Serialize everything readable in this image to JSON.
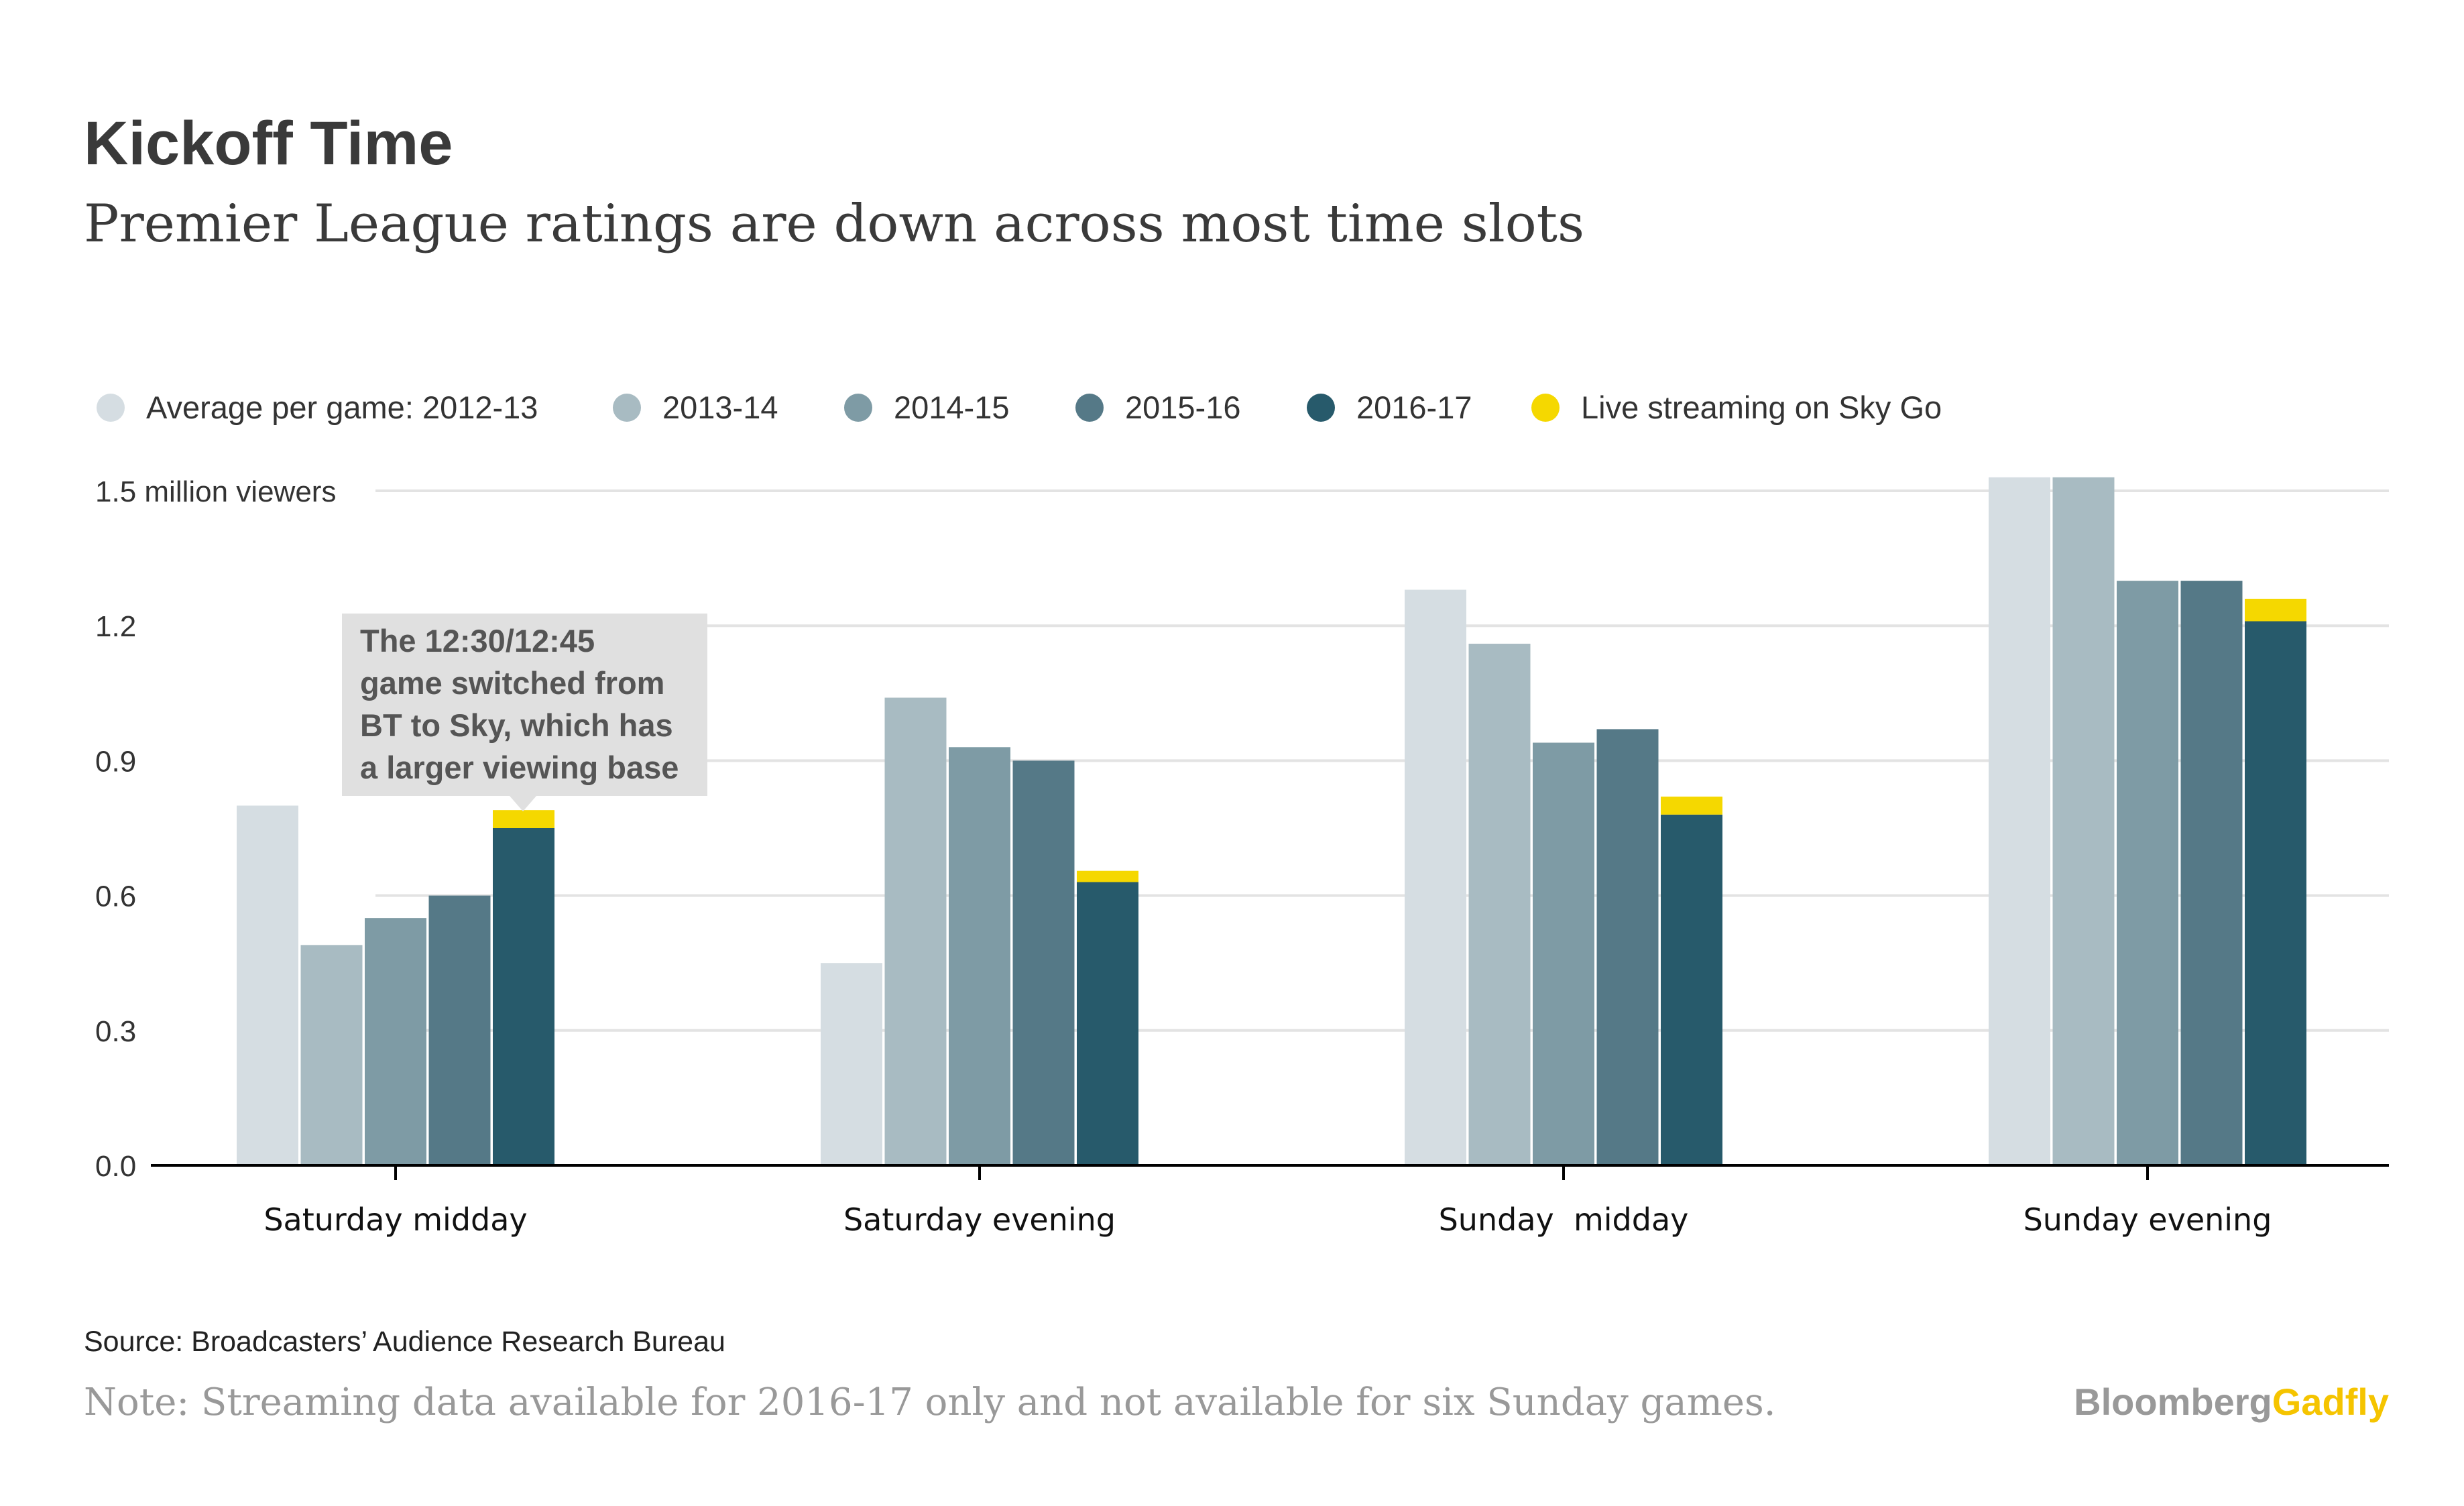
{
  "header": {
    "title": "Kickoff Time",
    "subtitle": "Premier League ratings are down across most time slots"
  },
  "legend": {
    "items": [
      {
        "label": "Average per game: 2012-13",
        "color": "#d5dde2"
      },
      {
        "label": "2013-14",
        "color": "#a8bbc2"
      },
      {
        "label": "2014-15",
        "color": "#7e9ba5"
      },
      {
        "label": "2015-16",
        "color": "#557987"
      },
      {
        "label": "2016-17",
        "color": "#275a6b"
      },
      {
        "label": "Live streaming on Sky Go",
        "color": "#f5d800"
      }
    ]
  },
  "annotation": {
    "lines": [
      "The 12:30/12:45",
      "game switched from",
      "BT to Sky, which has",
      "a larger viewing base"
    ]
  },
  "footer": {
    "source": "Source: Broadcasters’ Audience Research Bureau",
    "note": "Note: Streaming data available for 2016-17 only and not available for six Sunday games.",
    "brand_part1": "Bloomberg",
    "brand_part2": "Gadfly",
    "brand_color1": "#999999",
    "brand_color2": "#f5c400"
  },
  "chart_data": {
    "type": "bar",
    "categories": [
      "Saturday midday",
      "Saturday evening",
      "Sunday  midday",
      "Sunday evening"
    ],
    "series": [
      {
        "name": "Average per game: 2012-13",
        "values": [
          0.8,
          0.45,
          1.28,
          1.53
        ],
        "color": "#d5dde2"
      },
      {
        "name": "2013-14",
        "values": [
          0.49,
          1.04,
          1.16,
          1.53
        ],
        "color": "#a8bbc2"
      },
      {
        "name": "2014-15",
        "values": [
          0.55,
          0.93,
          0.94,
          1.3
        ],
        "color": "#7e9ba5"
      },
      {
        "name": "2015-16",
        "values": [
          0.6,
          0.9,
          0.97,
          1.3
        ],
        "color": "#557987"
      },
      {
        "name": "2016-17",
        "values": [
          0.75,
          0.63,
          0.78,
          1.21
        ],
        "color": "#275a6b"
      }
    ],
    "stacked_series": {
      "name": "Live streaming on Sky Go",
      "on_top_of": "2016-17",
      "values": [
        0.04,
        0.025,
        0.04,
        0.05
      ],
      "color": "#f5d800"
    },
    "y_ticks": [
      {
        "value": 0.0,
        "label": "0.0"
      },
      {
        "value": 0.3,
        "label": "0.3"
      },
      {
        "value": 0.6,
        "label": "0.6"
      },
      {
        "value": 0.9,
        "label": "0.9"
      },
      {
        "value": 1.2,
        "label": "1.2"
      },
      {
        "value": 1.5,
        "label": "1.5 million viewers"
      }
    ],
    "ylim": [
      0,
      1.5
    ],
    "grid": true,
    "legend_position": "top"
  }
}
